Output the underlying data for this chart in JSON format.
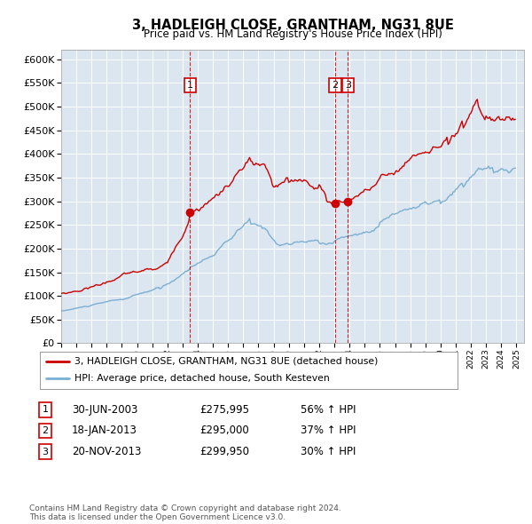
{
  "title": "3, HADLEIGH CLOSE, GRANTHAM, NG31 8UE",
  "subtitle": "Price paid vs. HM Land Registry's House Price Index (HPI)",
  "background_color": "#dce6f0",
  "red_line_label": "3, HADLEIGH CLOSE, GRANTHAM, NG31 8UE (detached house)",
  "blue_line_label": "HPI: Average price, detached house, South Kesteven",
  "ylim": [
    0,
    620000
  ],
  "ytick_step": 50000,
  "x_start_year": 1995,
  "x_end_year": 2025,
  "sale_events": [
    {
      "num": 1,
      "date": "30-JUN-2003",
      "price": 275995,
      "pct": "56% ↑ HPI"
    },
    {
      "num": 2,
      "date": "18-JAN-2013",
      "price": 295000,
      "pct": "37% ↑ HPI"
    },
    {
      "num": 3,
      "date": "20-NOV-2013",
      "price": 299950,
      "pct": "30% ↑ HPI"
    }
  ],
  "vline_dates": [
    2003.5,
    2013.05,
    2013.9
  ],
  "sale_marker_prices": [
    275995,
    295000,
    299950
  ],
  "footer": "Contains HM Land Registry data © Crown copyright and database right 2024.\nThis data is licensed under the Open Government Licence v3.0.",
  "red_color": "#cc0000",
  "blue_color": "#7bafd4",
  "vline_color": "#cc0000"
}
